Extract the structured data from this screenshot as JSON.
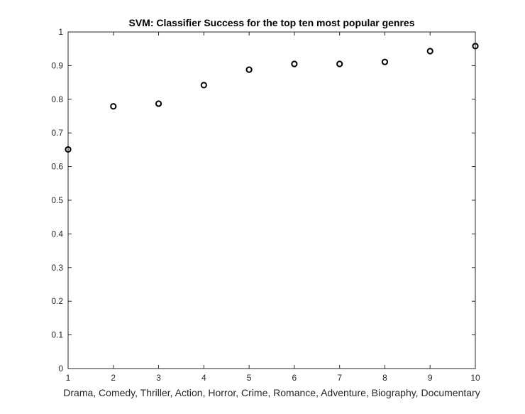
{
  "chart_data": {
    "type": "scatter",
    "title": "SVM: Classifier Success for the top ten most popular genres",
    "xlabel": "Drama, Comedy, Thriller, Action, Horror, Crime, Romance, Adventure, Biography, Documentary",
    "ylabel": "",
    "xlim": [
      1,
      10
    ],
    "ylim": [
      0,
      1
    ],
    "x_ticks": [
      "1",
      "2",
      "3",
      "4",
      "5",
      "6",
      "7",
      "8",
      "9",
      "10"
    ],
    "y_ticks": [
      "0",
      "0.1",
      "0.2",
      "0.3",
      "0.4",
      "0.5",
      "0.6",
      "0.7",
      "0.8",
      "0.9",
      "1"
    ],
    "grid": false,
    "marker": "circle-open",
    "marker_color": "#000000",
    "series": [
      {
        "x": [
          1,
          2,
          3,
          4,
          5,
          6,
          7,
          8,
          9,
          10
        ],
        "y": [
          0.651,
          0.779,
          0.787,
          0.842,
          0.888,
          0.905,
          0.905,
          0.911,
          0.943,
          0.958
        ]
      }
    ]
  }
}
